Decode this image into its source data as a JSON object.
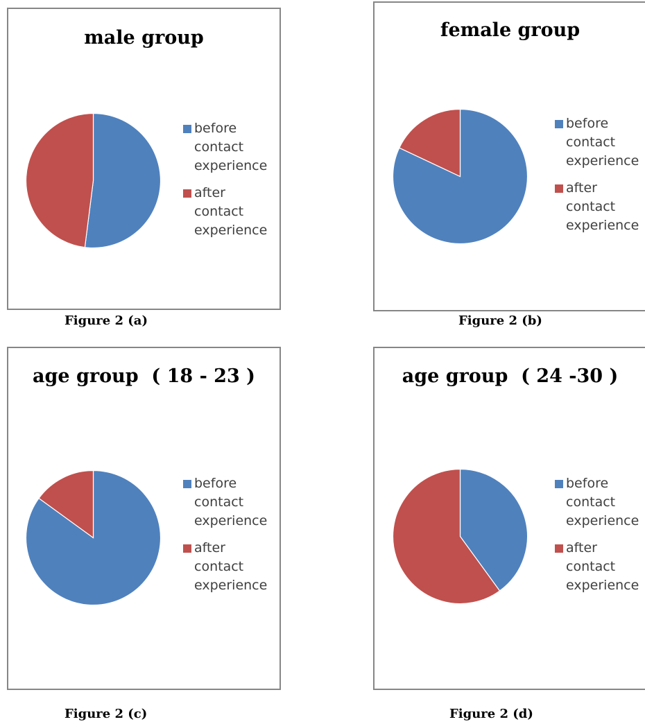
{
  "colors": {
    "before": "#4f81bd",
    "after": "#c0504d"
  },
  "legend_labels": [
    "before contact experience",
    "after contact experience"
  ],
  "chart_data": [
    {
      "type": "pie",
      "title": "male group",
      "categories": [
        "before contact experience",
        "after contact experience"
      ],
      "values": [
        52,
        48
      ],
      "legend": "right",
      "caption": "Figure 2 (a)"
    },
    {
      "type": "pie",
      "title": "female group",
      "categories": [
        "before contact experience",
        "after contact experience"
      ],
      "values": [
        82,
        18
      ],
      "legend": "right",
      "caption": "Figure 2 (b)"
    },
    {
      "type": "pie",
      "title": "age group  ( 18 - 23 )",
      "categories": [
        "before contact experience",
        "after contact experience"
      ],
      "values": [
        85,
        15
      ],
      "legend": "right",
      "caption": "Figure 2 (c)"
    },
    {
      "type": "pie",
      "title": "age group  ( 24 -30 )",
      "categories": [
        "before contact experience",
        "after contact experience"
      ],
      "values": [
        40,
        60
      ],
      "legend": "right",
      "caption": "Figure 2 (d)"
    }
  ]
}
